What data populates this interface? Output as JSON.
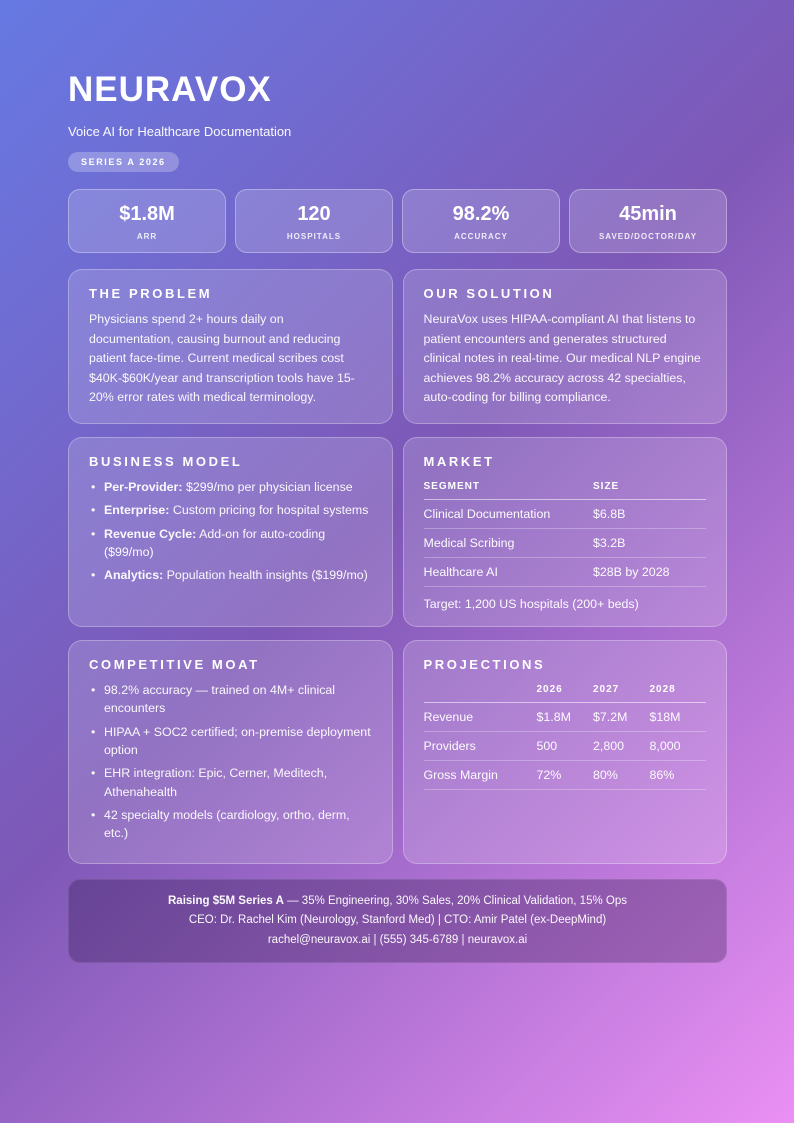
{
  "colors": {
    "background_gradient": [
      "#6679e3",
      "#7e58b7",
      "#eb90f4"
    ],
    "text": "#ffffff",
    "card_overlay": "rgba(255,255,255,0.16)",
    "footer_overlay": "rgba(30,12,56,0.28)"
  },
  "header": {
    "title": "NEURAVOX",
    "subtitle": "Voice AI for Healthcare Documentation",
    "badge": "SERIES A 2026"
  },
  "stats": [
    {
      "value": "$1.8M",
      "label": "ARR"
    },
    {
      "value": "120",
      "label": "HOSPITALS"
    },
    {
      "value": "98.2%",
      "label": "ACCURACY"
    },
    {
      "value": "45min",
      "label": "SAVED/DOCTOR/DAY"
    }
  ],
  "problem": {
    "heading": "THE PROBLEM",
    "body": "Physicians spend 2+ hours daily on documentation, causing burnout and reducing patient face-time. Current medical scribes cost $40K-$60K/year and transcription tools have 15-20% error rates with medical terminology."
  },
  "solution": {
    "heading": "OUR SOLUTION",
    "body": "NeuraVox uses HIPAA-compliant AI that listens to patient encounters and generates structured clinical notes in real-time. Our medical NLP engine achieves 98.2% accuracy across 42 specialties, auto-coding for billing compliance."
  },
  "business_model": {
    "heading": "BUSINESS MODEL",
    "items": [
      {
        "label": "Per-Provider:",
        "text": "$299/mo per physician license"
      },
      {
        "label": "Enterprise:",
        "text": "Custom pricing for hospital systems"
      },
      {
        "label": "Revenue Cycle:",
        "text": "Add-on for auto-coding ($99/mo)"
      },
      {
        "label": "Analytics:",
        "text": "Population health insights ($199/mo)"
      }
    ]
  },
  "market": {
    "heading": "MARKET",
    "columns": [
      "SEGMENT",
      "SIZE"
    ],
    "rows": [
      {
        "segment": "Clinical Documentation",
        "size": "$6.8B"
      },
      {
        "segment": "Medical Scribing",
        "size": "$3.2B"
      },
      {
        "segment": "Healthcare AI",
        "size": "$28B by 2028"
      }
    ],
    "target": "Target: 1,200 US hospitals (200+ beds)"
  },
  "moat": {
    "heading": "COMPETITIVE MOAT",
    "items": [
      "98.2% accuracy — trained on 4M+ clinical encounters",
      "HIPAA + SOC2 certified; on-premise deployment option",
      "EHR integration: Epic, Cerner, Meditech, Athenahealth",
      "42 specialty models (cardiology, ortho, derm, etc.)"
    ]
  },
  "projections": {
    "heading": "PROJECTIONS",
    "columns": [
      "",
      "2026",
      "2027",
      "2028"
    ],
    "rows": [
      {
        "label": "Revenue",
        "y2026": "$1.8M",
        "y2027": "$7.2M",
        "y2028": "$18M"
      },
      {
        "label": "Providers",
        "y2026": "500",
        "y2027": "2,800",
        "y2028": "8,000"
      },
      {
        "label": "Gross Margin",
        "y2026": "72%",
        "y2027": "80%",
        "y2028": "86%"
      }
    ]
  },
  "footer": {
    "line1_bold": "Raising $5M Series A",
    "line1_rest": "— 35% Engineering, 30% Sales, 20% Clinical Validation, 15% Ops",
    "line2": "CEO: Dr. Rachel Kim (Neurology, Stanford Med) | CTO: Amir Patel (ex-DeepMind)",
    "line3": "rachel@neuravox.ai | (555) 345-6789 | neuravox.ai"
  }
}
